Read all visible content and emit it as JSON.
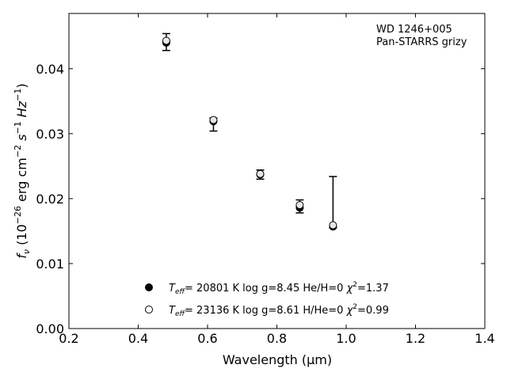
{
  "chart_data": {
    "type": "scatter",
    "title": "",
    "xlabel": "Wavelength (μm)",
    "ylabel": {
      "base": "f",
      "sub": "ν",
      "rest": " (10",
      "exp": "−26",
      "units": " erg cm",
      "e2": "−2",
      "s": " s",
      "e1": "−1",
      "hz": " Hz",
      "e3": "−1",
      "close": ")"
    },
    "xlim": [
      0.2,
      1.4
    ],
    "ylim": [
      0.0,
      0.0485
    ],
    "xticks": [
      0.2,
      0.4,
      0.6,
      0.8,
      1.0,
      1.2,
      1.4
    ],
    "xtick_labels": [
      "0.2",
      "0.4",
      "0.6",
      "0.8",
      "1.0",
      "1.2",
      "1.4"
    ],
    "yticks": [
      0.0,
      0.01,
      0.02,
      0.03,
      0.04
    ],
    "ytick_labels": [
      "0.00",
      "0.01",
      "0.02",
      "0.03",
      "0.04"
    ],
    "grid": false,
    "annotation": [
      "WD 1246+005",
      "Pan-STARRS grizy"
    ],
    "observed": {
      "x": [
        0.481,
        0.617,
        0.752,
        0.866,
        0.962
      ],
      "y": [
        0.0441,
        0.0317,
        0.0237,
        0.0188,
        0.0158
      ],
      "yerr_low": [
        0.0013,
        0.0013,
        0.0007,
        0.001,
        0.0003
      ],
      "yerr_high": [
        0.0013,
        0.0007,
        0.0007,
        0.001,
        0.0076
      ]
    },
    "series": [
      {
        "marker": "filled-circle",
        "x": [
          0.481,
          0.617,
          0.752,
          0.866,
          0.962
        ],
        "y": [
          0.044,
          0.0319,
          0.0237,
          0.0186,
          0.0157
        ],
        "label": {
          "t": "T",
          "tsub": "eff",
          "main": "= 20801 K  log g=8.45  He/H=0  ",
          "chi": "χ",
          "chisup": "2",
          "chival": "=1.37"
        }
      },
      {
        "marker": "open-circle",
        "x": [
          0.481,
          0.617,
          0.752,
          0.866,
          0.962
        ],
        "y": [
          0.0443,
          0.0321,
          0.0238,
          0.019,
          0.0159
        ],
        "label": {
          "t": "T",
          "tsub": "eff",
          "main": "= 23136 K  log g=8.61  H/He=0  ",
          "chi": "χ",
          "chisup": "2",
          "chival": "=0.99"
        }
      }
    ],
    "legend_position": "bottom-left"
  }
}
